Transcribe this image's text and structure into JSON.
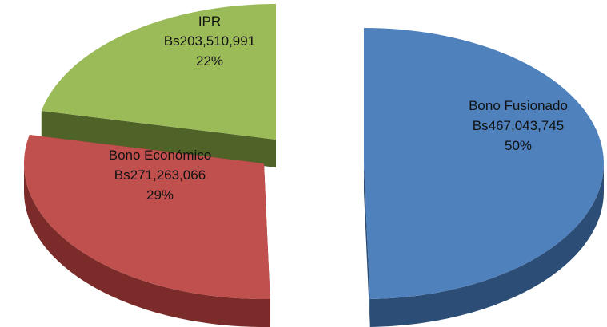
{
  "chart_data": {
    "type": "pie",
    "categories": [
      "Bono Fusionado",
      "Bono Económico",
      "IPR"
    ],
    "values": [
      467043745,
      271263066,
      203510991
    ],
    "value_labels": [
      "Bs467,043,745",
      "Bs271,263,066",
      "Bs203,510,991"
    ],
    "percentages": [
      50,
      29,
      22
    ],
    "percentage_labels": [
      "50%",
      "29%",
      "22%"
    ],
    "colors": [
      "#4f81bd",
      "#c0504d",
      "#9bbb59"
    ],
    "side_colors": [
      "#2c4d75",
      "#7b2b29",
      "#4f6228"
    ]
  }
}
